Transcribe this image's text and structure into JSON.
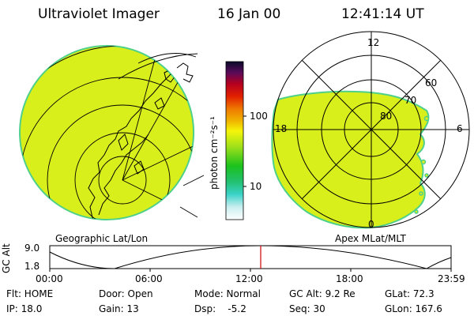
{
  "header": {
    "instrument": "Ultraviolet Imager",
    "date": "16 Jan 00",
    "time": "12:41:14 UT"
  },
  "colorbar": {
    "unit_label": "photon cm⁻²s⁻¹",
    "tick_100": "100",
    "tick_10": "10",
    "scale": "log"
  },
  "panels": {
    "left_caption": "Geographic Lat/Lon",
    "right_caption": "Apex MLat/MLT",
    "mlt_12": "12",
    "mlt_18": "18",
    "mlt_6": "6",
    "mlt_0": "0",
    "lat_60": "60",
    "lat_70": "70",
    "lat_80": "80"
  },
  "altitude_plot": {
    "ylabel": "GC Alt",
    "tick_top": "9.0",
    "tick_bottom": "1.8",
    "time_ticks": [
      "00:00",
      "06:00",
      "12:00",
      "18:00",
      "23:59"
    ],
    "current_marker_time": "12:41"
  },
  "footer": {
    "flt": "Flt: HOME",
    "ip": "IP: 18.0",
    "door": "Door: Open",
    "gain": "Gain: 13",
    "mode": "Mode: Normal",
    "dsp": "Dsp:    -5.2",
    "gcalt": "GC Alt: 9.2 Re",
    "seq": "Seq: 30",
    "glat": "GLat: 72.3",
    "glon": "GLon: 167.6"
  },
  "colors": {
    "image_fill": "#d9ef1c",
    "image_edge": "#4fd08a",
    "marker": "#d00000"
  }
}
